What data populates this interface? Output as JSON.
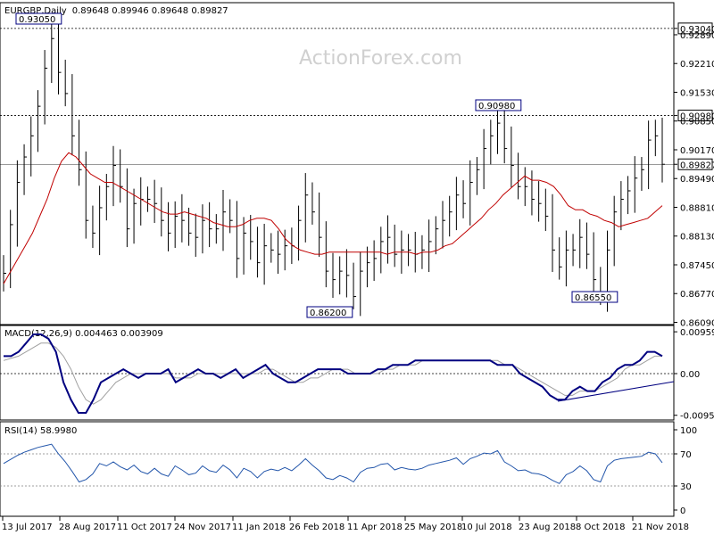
{
  "header": {
    "symbol": "EURGBP,Daily",
    "ohlc": "0.89648 0.89946 0.89648 0.89827"
  },
  "watermark": "ActionForex.com",
  "colors": {
    "candle": "#000000",
    "ma": "#c00000",
    "macd": "#000080",
    "signal": "#a0a0a0",
    "rsi": "#2255aa",
    "trend": "#000080"
  },
  "chart_data": [
    {
      "type": "line",
      "name": "price",
      "y_ticks": [
        "0.93040",
        "0.92890",
        "0.92210",
        "0.91530",
        "0.90980",
        "0.90850",
        "0.90170",
        "0.89827",
        "0.89490",
        "0.88810",
        "0.88130",
        "0.87450",
        "0.86770",
        "0.86090"
      ],
      "ylim": [
        0.8609,
        0.9304
      ],
      "x_ticks": [
        "13 Jul 2017",
        "28 Aug 2017",
        "11 Oct 2017",
        "24 Nov 2017",
        "11 Jan 2018",
        "26 Feb 2018",
        "11 Apr 2018",
        "25 May 2018",
        "10 Jul 2018",
        "23 Aug 2018",
        "8 Oct 2018",
        "21 Nov 2018"
      ],
      "levels": [
        0.9304,
        0.9098,
        0.89827
      ],
      "annotations": [
        "0.93050",
        "0.90980",
        "0.86200",
        "0.86550"
      ],
      "close": [
        0.8725,
        0.884,
        0.894,
        0.9,
        0.905,
        0.912,
        0.921,
        0.928,
        0.92,
        0.915,
        0.905,
        0.897,
        0.885,
        0.882,
        0.888,
        0.893,
        0.898,
        0.893,
        0.883,
        0.889,
        0.89,
        0.89,
        0.889,
        0.885,
        0.882,
        0.886,
        0.885,
        0.882,
        0.881,
        0.885,
        0.883,
        0.883,
        0.887,
        0.885,
        0.876,
        0.882,
        0.88,
        0.875,
        0.879,
        0.878,
        0.877,
        0.879,
        0.879,
        0.885,
        0.891,
        0.887,
        0.881,
        0.873,
        0.871,
        0.873,
        0.872,
        0.867,
        0.873,
        0.875,
        0.876,
        0.88,
        0.881,
        0.877,
        0.878,
        0.878,
        0.877,
        0.878,
        0.88,
        0.883,
        0.885,
        0.887,
        0.891,
        0.889,
        0.894,
        0.897,
        0.902,
        0.905,
        0.908,
        0.902,
        0.898,
        0.893,
        0.893,
        0.89,
        0.889,
        0.886,
        0.878,
        0.874,
        0.878,
        0.878,
        0.881,
        0.877,
        0.871,
        0.868,
        0.878,
        0.887,
        0.89,
        0.892,
        0.895,
        0.897,
        0.904,
        0.905,
        0.89827
      ],
      "ma": [
        0.87,
        0.873,
        0.876,
        0.879,
        0.882,
        0.886,
        0.89,
        0.895,
        0.899,
        0.901,
        0.9,
        0.898,
        0.896,
        0.895,
        0.894,
        0.894,
        0.893,
        0.892,
        0.891,
        0.89,
        0.889,
        0.888,
        0.887,
        0.8865,
        0.8865,
        0.887,
        0.8865,
        0.886,
        0.8855,
        0.8845,
        0.884,
        0.8835,
        0.8835,
        0.884,
        0.885,
        0.8855,
        0.8855,
        0.885,
        0.883,
        0.8805,
        0.879,
        0.878,
        0.8775,
        0.877,
        0.877,
        0.8775,
        0.8775,
        0.8775,
        0.8775,
        0.8775,
        0.8775,
        0.8775,
        0.8775,
        0.877,
        0.8775,
        0.8775,
        0.8775,
        0.877,
        0.8775,
        0.8775,
        0.878,
        0.879,
        0.8795,
        0.881,
        0.8825,
        0.884,
        0.8855,
        0.8875,
        0.889,
        0.891,
        0.8925,
        0.894,
        0.8955,
        0.8945,
        0.8945,
        0.894,
        0.893,
        0.891,
        0.8885,
        0.8875,
        0.8875,
        0.8865,
        0.886,
        0.885,
        0.8845,
        0.8835,
        0.884,
        0.8845,
        0.885,
        0.8855,
        0.887,
        0.8885
      ]
    },
    {
      "type": "line",
      "name": "macd",
      "title": "MACD(12,26,9) 0.004463 0.003909",
      "y_ticks": [
        "0.009593",
        "0.00",
        "-0.009562"
      ],
      "ylim": [
        -0.009562,
        0.009593
      ],
      "macd": [
        0.004,
        0.004,
        0.005,
        0.007,
        0.009,
        0.009,
        0.008,
        0.005,
        -0.002,
        -0.006,
        -0.009,
        -0.009,
        -0.006,
        -0.002,
        -0.001,
        0.0,
        0.001,
        0.0,
        -0.001,
        0.0,
        0.0,
        0.0,
        0.001,
        -0.002,
        -0.001,
        0.0,
        0.001,
        0.0,
        0.0,
        -0.001,
        0.0,
        0.001,
        -0.001,
        0.0,
        0.001,
        0.002,
        0.0,
        -0.001,
        -0.002,
        -0.002,
        -0.001,
        0.0,
        0.001,
        0.001,
        0.001,
        0.001,
        0.0,
        0.0,
        0.0,
        0.0,
        0.001,
        0.001,
        0.002,
        0.002,
        0.002,
        0.003,
        0.003,
        0.003,
        0.003,
        0.003,
        0.003,
        0.003,
        0.003,
        0.003,
        0.003,
        0.003,
        0.002,
        0.002,
        0.002,
        0.0,
        -0.001,
        -0.002,
        -0.003,
        -0.005,
        -0.006,
        -0.006,
        -0.004,
        -0.003,
        -0.004,
        -0.004,
        -0.002,
        -0.001,
        0.001,
        0.002,
        0.002,
        0.003,
        0.005,
        0.005,
        0.004
      ],
      "signal": [
        0.003,
        0.0035,
        0.004,
        0.005,
        0.006,
        0.007,
        0.007,
        0.006,
        0.004,
        0.001,
        -0.003,
        -0.006,
        -0.007,
        -0.006,
        -0.004,
        -0.002,
        -0.001,
        0.0,
        0.0,
        0.0,
        0.0,
        0.0,
        0.0,
        -0.001,
        -0.001,
        -0.001,
        0.0,
        0.0,
        0.0,
        0.0,
        0.0,
        0.0,
        0.0,
        0.0,
        0.0,
        0.001,
        0.001,
        0.0,
        -0.001,
        -0.002,
        -0.002,
        -0.001,
        -0.001,
        0.0,
        0.001,
        0.001,
        0.001,
        0.0,
        0.0,
        0.0,
        0.0,
        0.001,
        0.001,
        0.002,
        0.002,
        0.002,
        0.003,
        0.003,
        0.003,
        0.003,
        0.003,
        0.003,
        0.003,
        0.003,
        0.003,
        0.003,
        0.003,
        0.002,
        0.002,
        0.001,
        0.0,
        -0.001,
        -0.002,
        -0.003,
        -0.004,
        -0.005,
        -0.005,
        -0.004,
        -0.004,
        -0.004,
        -0.003,
        -0.002,
        -0.001,
        0.001,
        0.002,
        0.002,
        0.003,
        0.004,
        0.004
      ]
    },
    {
      "type": "line",
      "name": "rsi",
      "title": "RSI(14) 58.9980",
      "y_ticks": [
        "100",
        "70",
        "30",
        "0"
      ],
      "ylim": [
        0,
        100
      ],
      "levels": [
        70,
        30
      ],
      "values": [
        58,
        63,
        68,
        72,
        75,
        78,
        80,
        82,
        70,
        60,
        48,
        35,
        38,
        45,
        58,
        55,
        60,
        54,
        50,
        56,
        48,
        45,
        52,
        45,
        42,
        55,
        50,
        44,
        46,
        55,
        49,
        47,
        56,
        50,
        40,
        52,
        48,
        40,
        48,
        51,
        49,
        53,
        49,
        56,
        64,
        56,
        49,
        40,
        38,
        43,
        40,
        35,
        47,
        52,
        53,
        57,
        58,
        50,
        53,
        51,
        50,
        52,
        56,
        58,
        60,
        62,
        65,
        57,
        64,
        67,
        71,
        70,
        74,
        60,
        55,
        49,
        50,
        46,
        45,
        42,
        37,
        33,
        44,
        48,
        55,
        49,
        38,
        35,
        55,
        62,
        64,
        65,
        66,
        67,
        72,
        70,
        58.998
      ]
    }
  ]
}
